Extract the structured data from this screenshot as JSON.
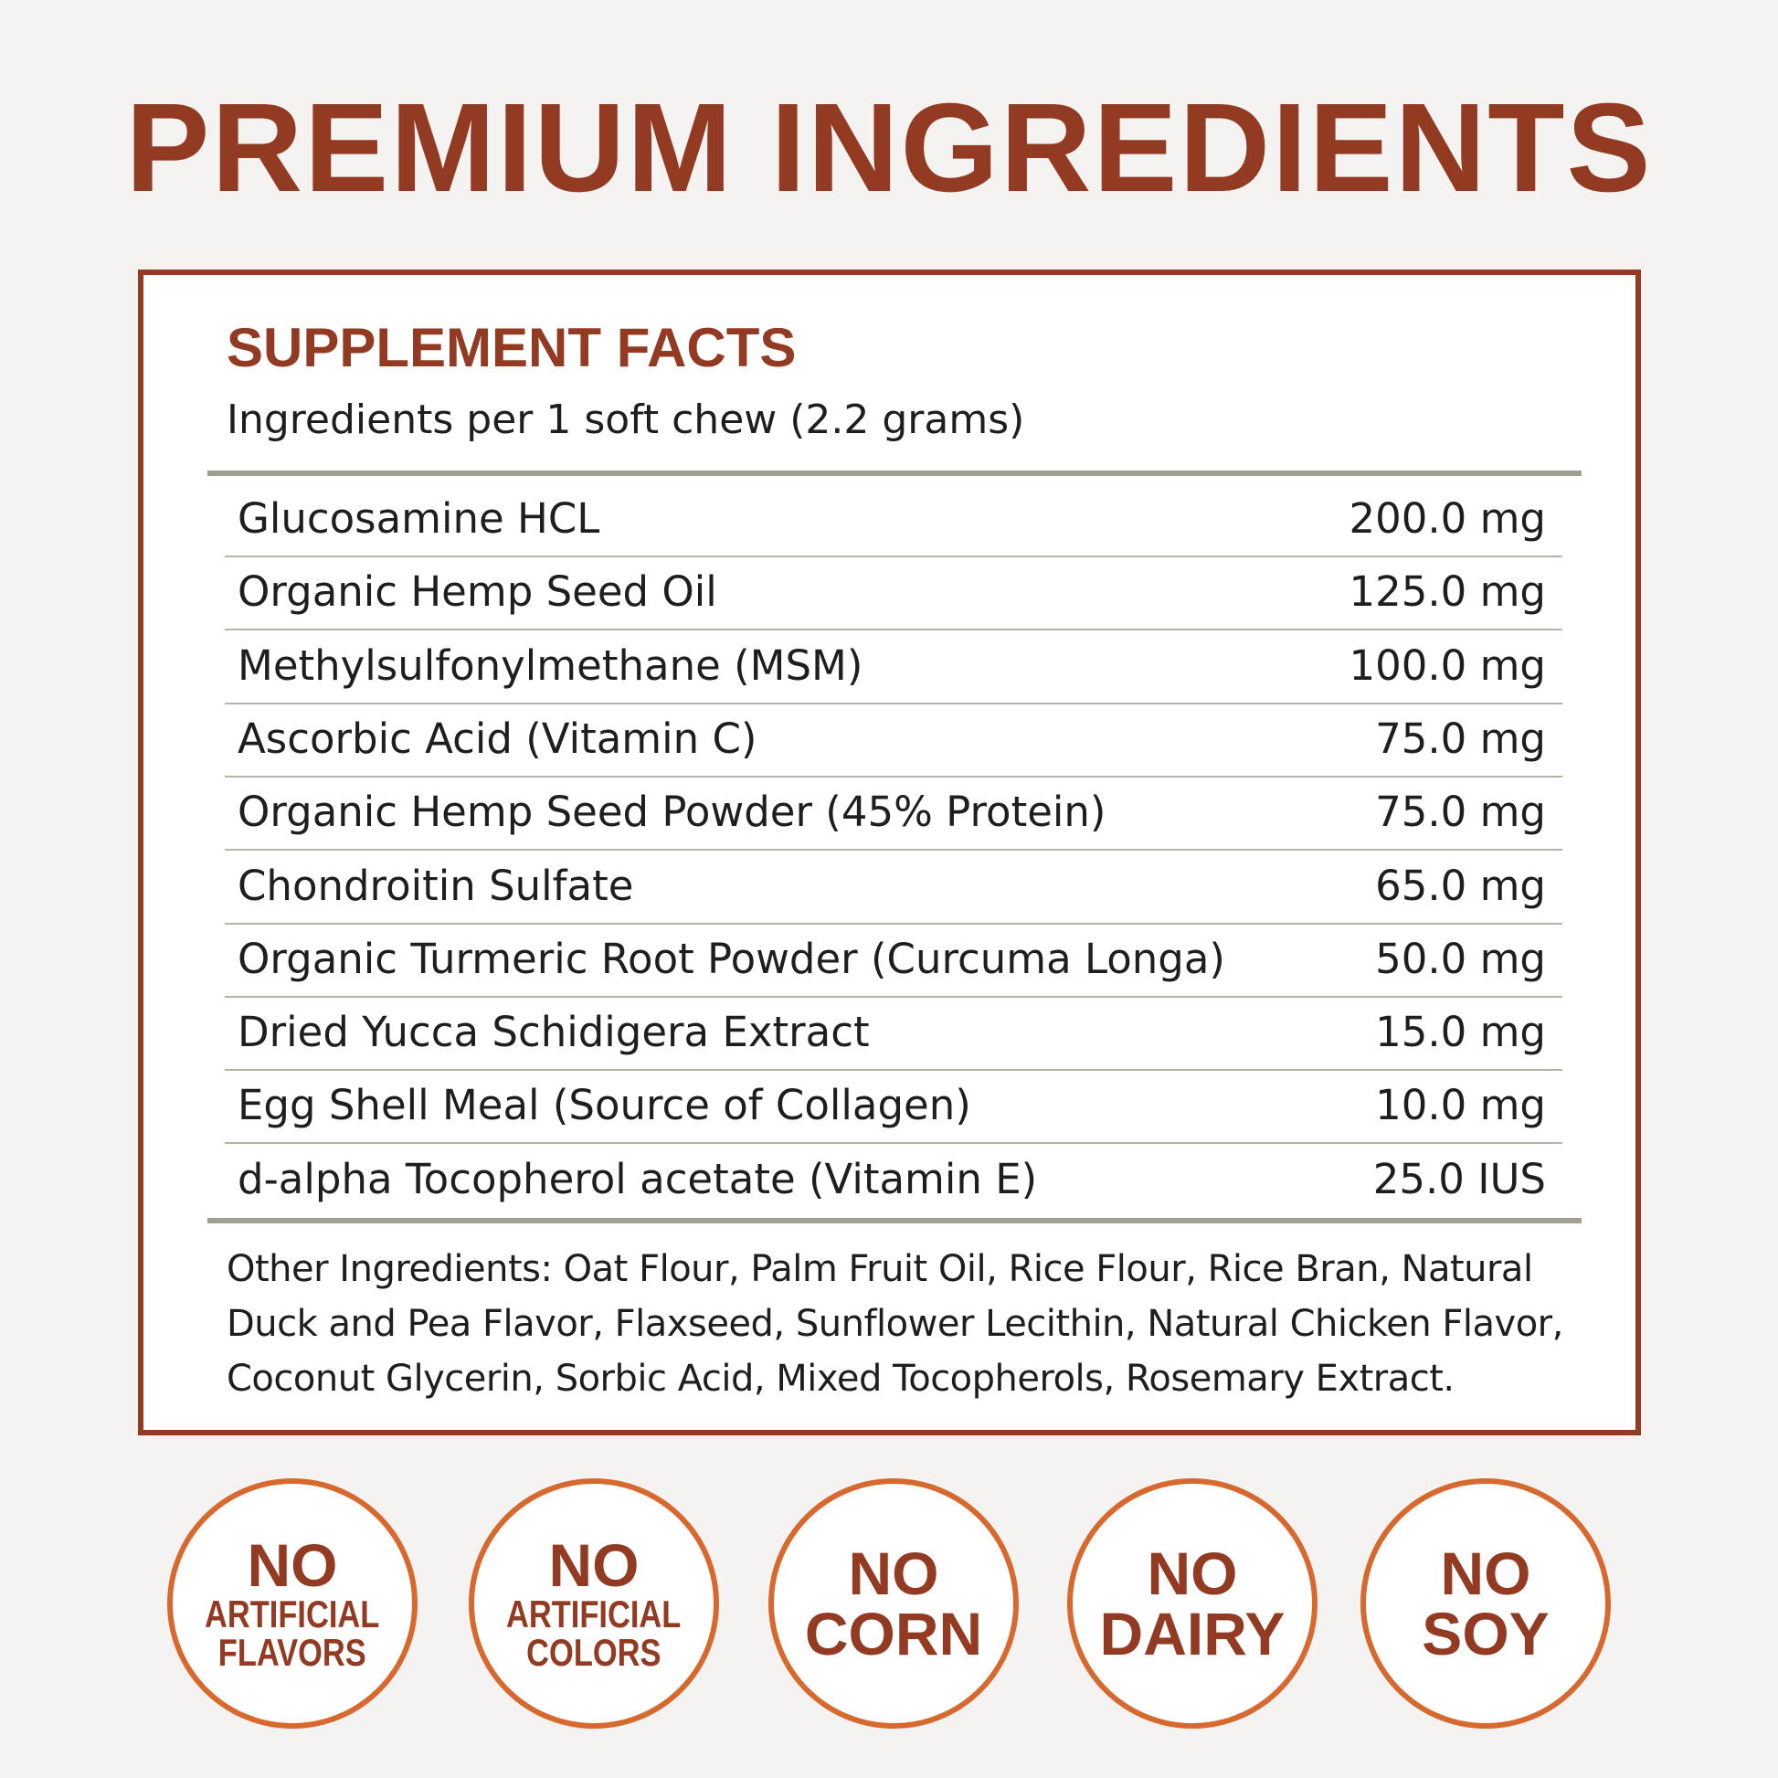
{
  "header": {
    "title": "PREMIUM INGREDIENTS"
  },
  "facts": {
    "heading": "SUPPLEMENT FACTS",
    "subheading": "Ingredients per 1 soft chew (2.2 grams)",
    "rows": [
      [
        "Glucosamine HCL",
        "200.0 mg"
      ],
      [
        "Organic Hemp Seed Oil",
        "125.0 mg"
      ],
      [
        "Methylsulfonylmethane (MSM)",
        "100.0 mg"
      ],
      [
        "Ascorbic Acid (Vitamin C)",
        "75.0 mg"
      ],
      [
        "Organic Hemp Seed Powder (45% Protein)",
        "75.0 mg"
      ],
      [
        "Chondroitin Sulfate",
        "65.0 mg"
      ],
      [
        "Organic Turmeric Root Powder (Curcuma Longa)",
        "50.0 mg"
      ],
      [
        "Dried Yucca Schidigera Extract",
        "15.0 mg"
      ],
      [
        "Egg Shell Meal (Source of Collagen)",
        "10.0 mg"
      ],
      [
        "d-alpha Tocopherol acetate (Vitamin E)",
        "25.0 IUS"
      ]
    ],
    "other": "Other Ingredients: Oat Flour, Palm Fruit Oil, Rice Flour, Rice Bran, Natural Duck and Pea Flavor, Flaxseed, Sunflower Lecithin, Natural Chicken Flavor, Coconut Glycerin, Sorbic Acid, Mixed Tocopherols, Rosemary Extract."
  },
  "badges": [
    {
      "lines": [
        "NO",
        "ARTIFICIAL",
        "FLAVORS"
      ]
    },
    {
      "lines": [
        "NO",
        "ARTIFICIAL",
        "COLORS"
      ]
    },
    {
      "lines": [
        "NO",
        "CORN"
      ]
    },
    {
      "lines": [
        "NO",
        "DAIRY"
      ]
    },
    {
      "lines": [
        "NO",
        "SOY"
      ]
    }
  ]
}
